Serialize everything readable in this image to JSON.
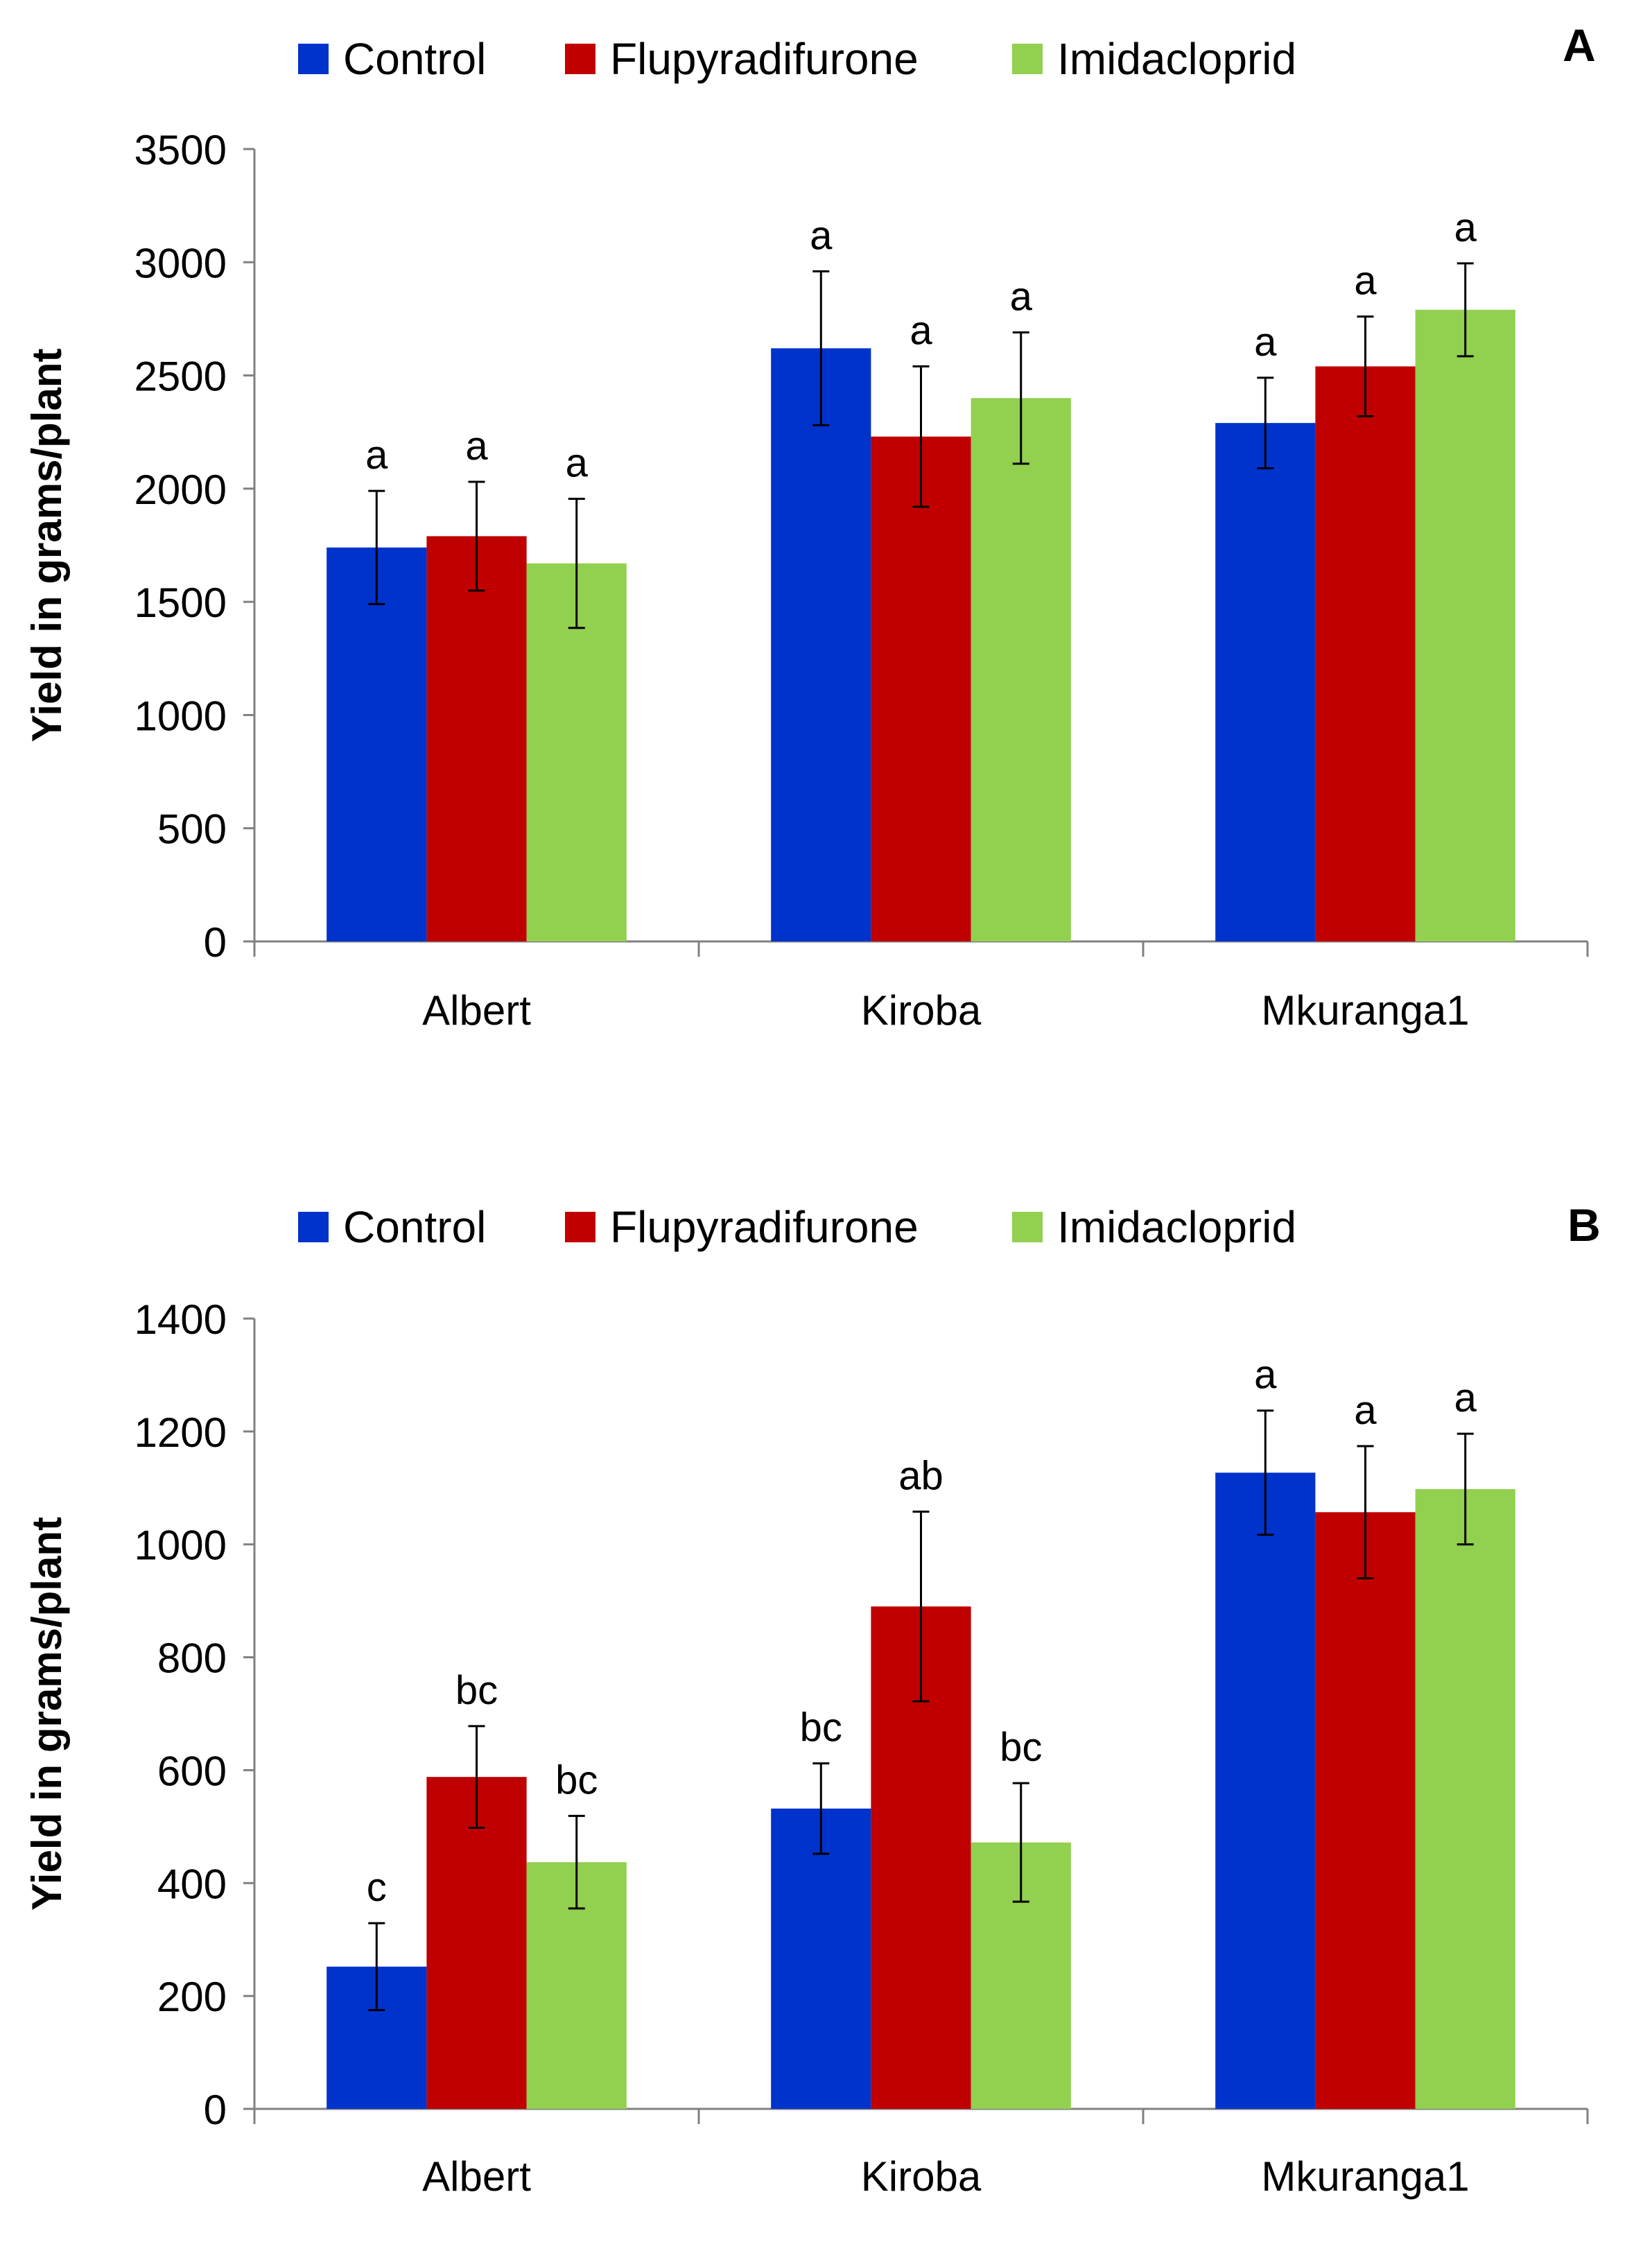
{
  "chart_data": [
    {
      "type": "bar",
      "panel_label": "A",
      "categories": [
        "Albert",
        "Kiroba",
        "Mkuranga1"
      ],
      "ylabel": "Yield in grams/plant",
      "xlabel": "",
      "ylim": [
        0,
        3500
      ],
      "yticks": [
        0,
        500,
        1000,
        1500,
        2000,
        2500,
        3000,
        3500
      ],
      "grid": false,
      "legend": "top",
      "series": [
        {
          "name": "Control",
          "color": "#0033cc",
          "values": [
            1740,
            2620,
            2290
          ],
          "errors": [
            250,
            340,
            200
          ],
          "letters": [
            "a",
            "a",
            "a"
          ]
        },
        {
          "name": "Flupyradifurone",
          "color": "#c00000",
          "values": [
            1790,
            2230,
            2540
          ],
          "errors": [
            240,
            310,
            220
          ],
          "letters": [
            "a",
            "a",
            "a"
          ]
        },
        {
          "name": "Imidacloprid",
          "color": "#92d050",
          "values": [
            1670,
            2400,
            2790
          ],
          "errors": [
            285,
            290,
            205
          ],
          "letters": [
            "a",
            "a",
            "a"
          ]
        }
      ]
    },
    {
      "type": "bar",
      "panel_label": "B",
      "categories": [
        "Albert",
        "Kiroba",
        "Mkuranga1"
      ],
      "ylabel": "Yield in grams/plant",
      "xlabel": "",
      "ylim": [
        0,
        1400
      ],
      "yticks": [
        0,
        200,
        400,
        600,
        800,
        1000,
        1200,
        1400
      ],
      "grid": false,
      "legend": "top",
      "series": [
        {
          "name": "Control",
          "color": "#0033cc",
          "values": [
            252,
            532,
            1127
          ],
          "errors": [
            77,
            80,
            110
          ],
          "letters": [
            "c",
            "bc",
            "a"
          ]
        },
        {
          "name": "Flupyradifurone",
          "color": "#c00000",
          "values": [
            588,
            890,
            1057
          ],
          "errors": [
            90,
            168,
            117
          ],
          "letters": [
            "bc",
            "ab",
            "a"
          ]
        },
        {
          "name": "Imidacloprid",
          "color": "#92d050",
          "values": [
            437,
            472,
            1098
          ],
          "errors": [
            82,
            105,
            98
          ],
          "letters": [
            "bc",
            "bc",
            "a"
          ]
        }
      ]
    }
  ]
}
